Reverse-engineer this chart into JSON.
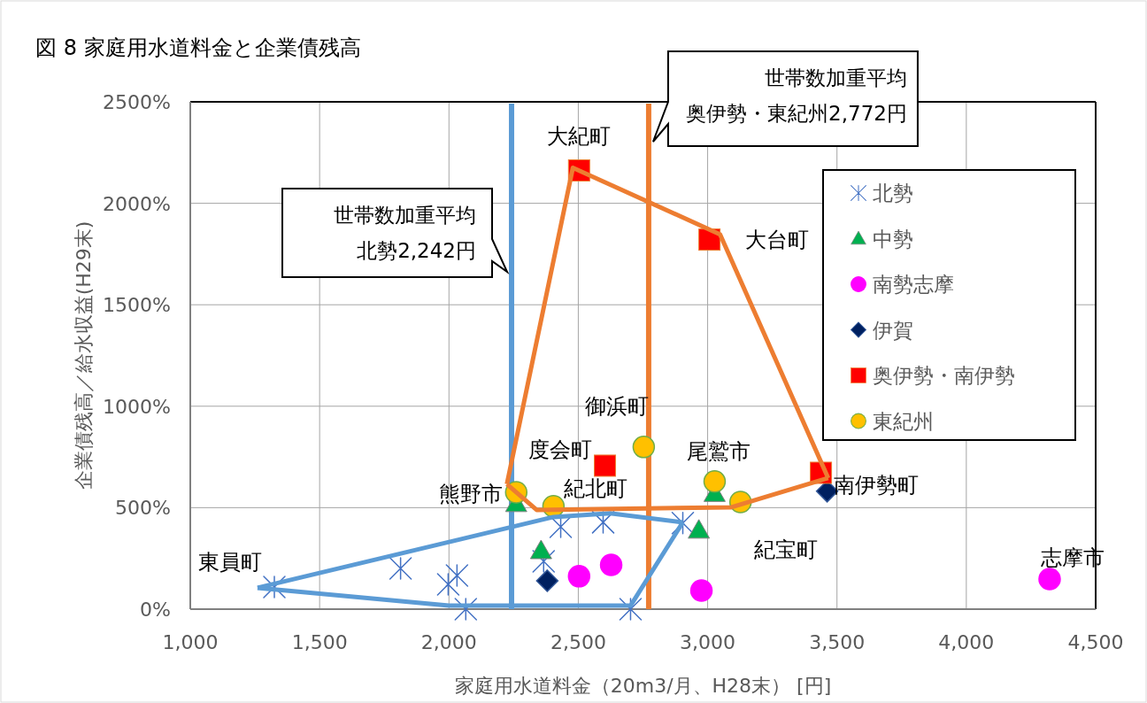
{
  "chart_data": {
    "type": "scatter",
    "title": "図 8 家庭用水道料金と企業債残高",
    "xlabel": "家庭用水道料金（20m3/月、H28末） [円]",
    "ylabel": "企業債残高／給水収益(H29末)",
    "xlim": [
      1000,
      4500
    ],
    "ylim": [
      0,
      2500
    ],
    "xticks": [
      {
        "value": 1000,
        "label": "1,000"
      },
      {
        "value": 1500,
        "label": "1,500"
      },
      {
        "value": 2000,
        "label": "2,000"
      },
      {
        "value": 2500,
        "label": "2,500"
      },
      {
        "value": 3000,
        "label": "3,000"
      },
      {
        "value": 3500,
        "label": "3,500"
      },
      {
        "value": 4000,
        "label": "4,000"
      },
      {
        "value": 4500,
        "label": "4,500"
      }
    ],
    "yticks": [
      {
        "value": 0,
        "label": "0%"
      },
      {
        "value": 500,
        "label": "500%"
      },
      {
        "value": 1000,
        "label": "1000%"
      },
      {
        "value": 1500,
        "label": "1500%"
      },
      {
        "value": 2000,
        "label": "2000%"
      },
      {
        "value": 2500,
        "label": "2500%"
      }
    ],
    "grid": true,
    "legend": "top right",
    "series": [
      {
        "type": "line",
        "color": "#5b9bd5",
        "marker": "none",
        "x": [
          1260,
          2404,
          2623,
          2904
        ],
        "values": [
          105,
          454,
          472,
          428
        ]
      },
      {
        "type": "line",
        "color": "#5b9bd5",
        "marker": "none",
        "x": [
          1260,
          2000,
          2702,
          2904
        ],
        "values": [
          105,
          17,
          17,
          428
        ]
      },
      {
        "type": "line",
        "color": "#ed7d31",
        "marker": "none",
        "x": [
          2224,
          2479,
          3048,
          3466
        ],
        "values": [
          616,
          2175,
          1847,
          646
        ]
      },
      {
        "type": "line",
        "color": "#ed7d31",
        "marker": "none",
        "x": [
          2224,
          2339,
          3092,
          3466
        ],
        "values": [
          616,
          489,
          502,
          646
        ]
      },
      {
        "name": "北勢",
        "color": "#4472c4",
        "marker": "cross",
        "x": [
          1325,
          1813,
          1997,
          2031,
          2065,
          2366,
          2432,
          2596,
          2702,
          2904
        ],
        "values": [
          109,
          201,
          122,
          166,
          0,
          236,
          406,
          428,
          0,
          424
        ]
      },
      {
        "name": "中勢",
        "color": "#00b050",
        "marker": "triangle",
        "x": [
          2260,
          2356,
          2966,
          3027
        ],
        "values": [
          520,
          288,
          389,
          570
        ]
      },
      {
        "name": "南勢志摩",
        "color": "#ff00ff",
        "marker": "circle",
        "x": [
          2503,
          2627,
          2976,
          4322
        ],
        "values": [
          162,
          218,
          92,
          148
        ]
      },
      {
        "name": "伊賀",
        "color": "#002060",
        "marker": "diamond",
        "x": [
          2380,
          3462
        ],
        "values": [
          140,
          581
        ]
      },
      {
        "name": "奥伊勢・南伊勢",
        "color": "#ff0000",
        "marker": "square",
        "x": [
          2503,
          3007,
          2603,
          3438
        ],
        "values": [
          2162,
          1821,
          707,
          672
        ]
      },
      {
        "name": "東紀州",
        "color": "#ffc000",
        "marker": "circle",
        "x": [
          2260,
          2404,
          2753,
          3027,
          3127
        ],
        "values": [
          576,
          507,
          799,
          629,
          528
        ]
      }
    ],
    "ref_lines": [
      {
        "axis": "x",
        "value": 2242,
        "label": "世帯数加重平均北勢2,242円",
        "color": "#5b9bd5",
        "line_style": "solid"
      },
      {
        "axis": "x",
        "value": 2772,
        "label": "世帯数加重平均奥伊勢・東紀州2,772円",
        "color": "#ed7d31",
        "line_style": "solid"
      }
    ],
    "annotations": [
      {
        "text": "東員町",
        "x": 1325,
        "y": 109
      },
      {
        "text": "大紀町",
        "x": 2503,
        "y": 2162
      },
      {
        "text": "大台町",
        "x": 3007,
        "y": 1821
      },
      {
        "text": "度会町",
        "x": 2603,
        "y": 707
      },
      {
        "text": "御浜町",
        "x": 2753,
        "y": 799
      },
      {
        "text": "熊野市",
        "x": 2260,
        "y": 576
      },
      {
        "text": "紀北町",
        "x": 2404,
        "y": 507
      },
      {
        "text": "尾鷲市",
        "x": 3027,
        "y": 629
      },
      {
        "text": "南伊勢町",
        "x": 3438,
        "y": 672
      },
      {
        "text": "紀宝町",
        "x": 3127,
        "y": 528
      },
      {
        "text": "志摩市",
        "x": 4322,
        "y": 148
      }
    ]
  }
}
